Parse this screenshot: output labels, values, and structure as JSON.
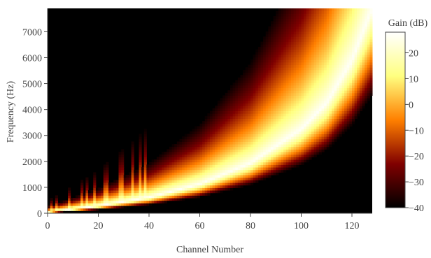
{
  "chart_data": {
    "type": "heatmap",
    "title": "",
    "xlabel": "Channel Number",
    "ylabel": "Frequency (Hz)",
    "xlim": [
      0,
      128
    ],
    "ylim": [
      0,
      7900
    ],
    "x_ticks": [
      "0",
      "20",
      "40",
      "60",
      "80",
      "100",
      "120"
    ],
    "y_ticks": [
      "0",
      "1000",
      "2000",
      "3000",
      "4000",
      "5000",
      "6000",
      "7000"
    ],
    "colorbar": {
      "label": "Gain (dB)",
      "range": [
        -40,
        28
      ],
      "ticks": [
        "20",
        "10",
        "0",
        "−10",
        "−20",
        "−30",
        "−40"
      ],
      "tick_values": [
        20,
        10,
        0,
        -10,
        -20,
        -30,
        -40
      ],
      "colormap": "afmhot",
      "colors": [
        "#000000",
        "#800000",
        "#ff8000",
        "#ffff80",
        "#ffffff"
      ]
    },
    "series": [
      {
        "name": "",
        "description_points_x": [
          0,
          20,
          40,
          60,
          80,
          100,
          110,
          120,
          128
        ],
        "center_frequency_hz": [
          50,
          290,
          620,
          1130,
          1940,
          3250,
          4250,
          5900,
          7900
        ]
      }
    ]
  }
}
